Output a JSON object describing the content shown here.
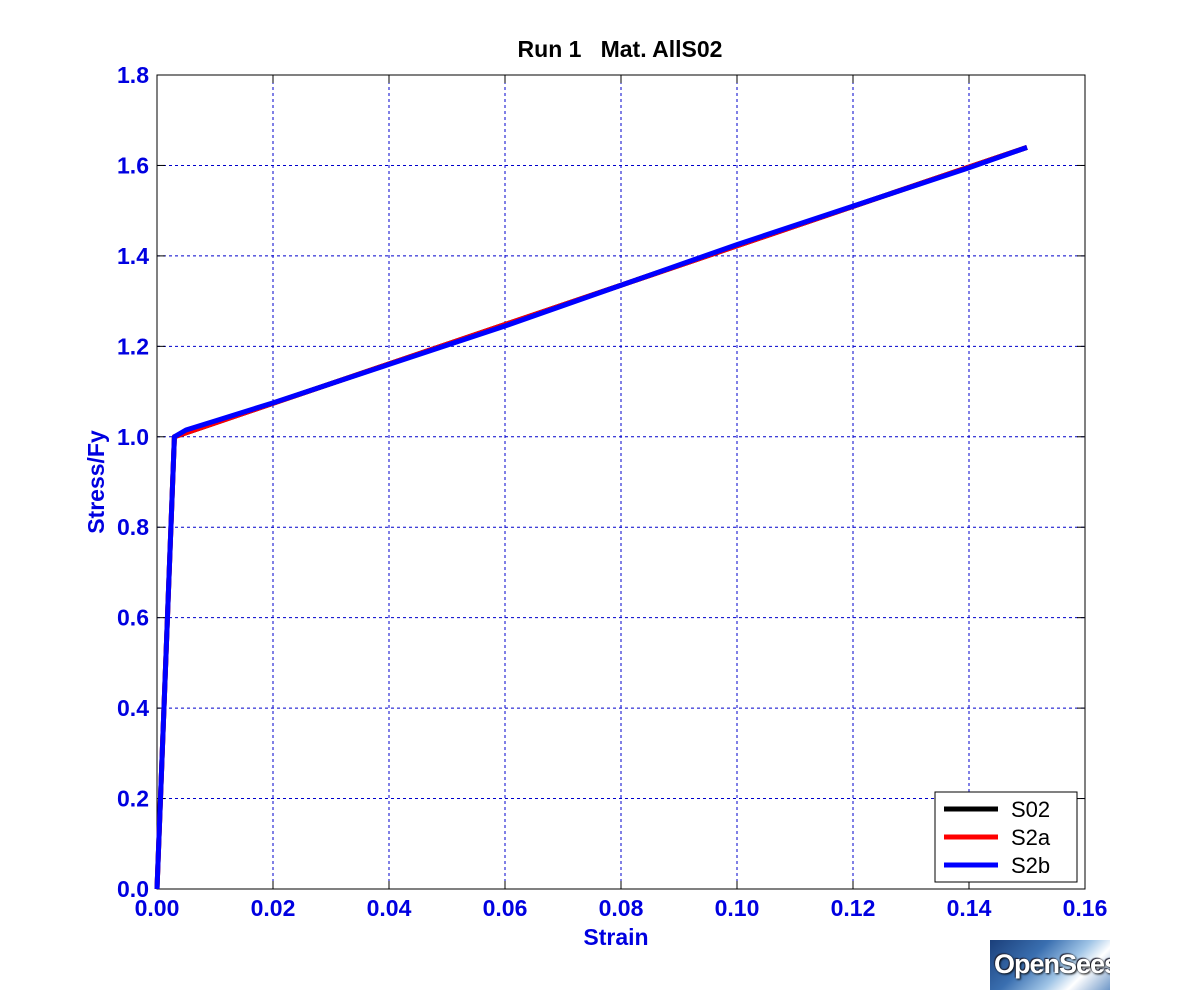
{
  "chart_data": {
    "type": "line",
    "title": "Run 1   Mat. AllS02",
    "xlabel": "Strain",
    "ylabel": "Stress/Fy",
    "xlim": [
      0,
      0.16
    ],
    "ylim": [
      0,
      1.8
    ],
    "xticks": [
      "0.00",
      "0.02",
      "0.04",
      "0.06",
      "0.08",
      "0.10",
      "0.12",
      "0.14",
      "0.16"
    ],
    "yticks": [
      "0.0",
      "0.2",
      "0.4",
      "0.6",
      "0.8",
      "1.0",
      "1.2",
      "1.4",
      "1.6",
      "1.8"
    ],
    "grid": true,
    "legend_position": "bottom-right",
    "series": [
      {
        "name": "S02",
        "color": "#000000",
        "x": [
          0,
          0.003,
          0.15
        ],
        "y": [
          0,
          1.0,
          1.64
        ]
      },
      {
        "name": "S2a",
        "color": "#ff0000",
        "x": [
          0,
          0.003,
          0.15
        ],
        "y": [
          0,
          1.0,
          1.64
        ]
      },
      {
        "name": "S2b",
        "color": "#0000ff",
        "x": [
          0,
          0.003,
          0.005,
          0.01,
          0.02,
          0.04,
          0.06,
          0.08,
          0.1,
          0.12,
          0.14,
          0.15
        ],
        "y": [
          0,
          1.0,
          1.015,
          1.035,
          1.075,
          1.16,
          1.245,
          1.335,
          1.425,
          1.51,
          1.595,
          1.64
        ]
      }
    ]
  },
  "logo": {
    "text": "OpenSees"
  }
}
